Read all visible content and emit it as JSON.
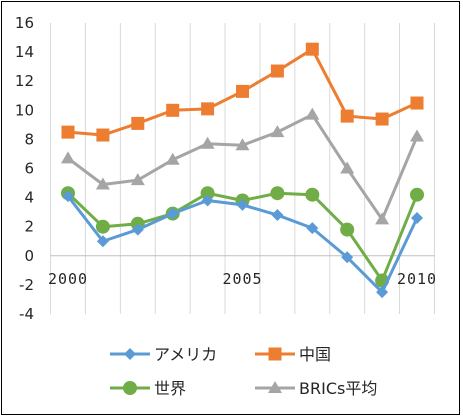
{
  "chart_data": {
    "type": "line",
    "x": [
      2000,
      2001,
      2002,
      2003,
      2004,
      2005,
      2006,
      2007,
      2008,
      2009,
      2010
    ],
    "xtick_labels": [
      "2000",
      "2005",
      "2010"
    ],
    "ylim": [
      -4,
      16
    ],
    "ytick_labels": [
      "-4",
      "-2",
      "0",
      "2",
      "4",
      "6",
      "8",
      "10",
      "12",
      "14",
      "16"
    ],
    "grid": "vertical",
    "legend_position": "bottom",
    "series": [
      {
        "name": "アメリカ",
        "color": "#5B9BD5",
        "marker": "diamond",
        "values": [
          4.1,
          1.0,
          1.8,
          2.9,
          3.8,
          3.5,
          2.8,
          1.9,
          -0.1,
          -2.5,
          2.6
        ]
      },
      {
        "name": "中国",
        "color": "#ED7D31",
        "marker": "square",
        "values": [
          8.5,
          8.3,
          9.1,
          10.0,
          10.1,
          11.3,
          12.7,
          14.2,
          9.6,
          9.4,
          10.5
        ]
      },
      {
        "name": "世界",
        "color": "#70AD47",
        "marker": "circle",
        "values": [
          4.3,
          2.0,
          2.2,
          2.9,
          4.3,
          3.8,
          4.3,
          4.2,
          1.8,
          -1.7,
          4.2
        ]
      },
      {
        "name": "BRICs平均",
        "color": "#A5A5A5",
        "marker": "triangle",
        "values": [
          6.7,
          4.9,
          5.2,
          6.6,
          7.7,
          7.6,
          8.5,
          9.7,
          6.0,
          2.5,
          8.2
        ]
      }
    ]
  }
}
